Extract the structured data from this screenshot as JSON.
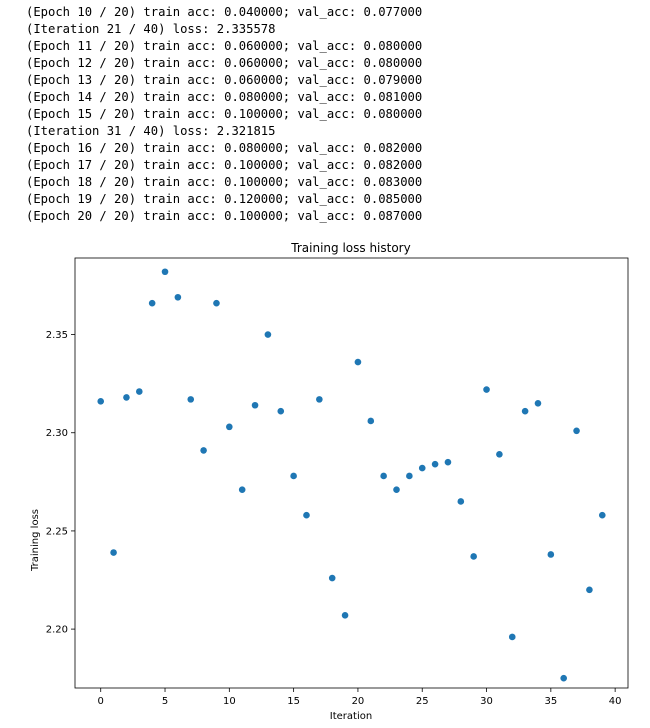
{
  "log_lines": [
    "(Epoch 10 / 20) train acc: 0.040000; val_acc: 0.077000",
    "(Iteration 21 / 40) loss: 2.335578",
    "(Epoch 11 / 20) train acc: 0.060000; val_acc: 0.080000",
    "(Epoch 12 / 20) train acc: 0.060000; val_acc: 0.080000",
    "(Epoch 13 / 20) train acc: 0.060000; val_acc: 0.079000",
    "(Epoch 14 / 20) train acc: 0.080000; val_acc: 0.081000",
    "(Epoch 15 / 20) train acc: 0.100000; val_acc: 0.080000",
    "(Iteration 31 / 40) loss: 2.321815",
    "(Epoch 16 / 20) train acc: 0.080000; val_acc: 0.082000",
    "(Epoch 17 / 20) train acc: 0.100000; val_acc: 0.082000",
    "(Epoch 18 / 20) train acc: 0.100000; val_acc: 0.083000",
    "(Epoch 19 / 20) train acc: 0.120000; val_acc: 0.085000",
    "(Epoch 20 / 20) train acc: 0.100000; val_acc: 0.087000"
  ],
  "chart_data": {
    "type": "scatter",
    "title": "Training loss history",
    "xlabel": "Iteration",
    "ylabel": "Training loss",
    "xlim": [
      -2,
      41
    ],
    "ylim": [
      2.17,
      2.389
    ],
    "xticks": [
      0,
      5,
      10,
      15,
      20,
      25,
      30,
      35,
      40
    ],
    "yticks": [
      2.2,
      2.25,
      2.3,
      2.35
    ],
    "ytick_labels": [
      "2.20",
      "2.25",
      "2.30",
      "2.35"
    ],
    "grid": false,
    "marker_color": "#1f77b4",
    "x": [
      0,
      1,
      2,
      3,
      4,
      5,
      6,
      7,
      8,
      9,
      10,
      11,
      12,
      13,
      14,
      15,
      16,
      17,
      18,
      19,
      20,
      21,
      22,
      23,
      24,
      25,
      26,
      27,
      28,
      29,
      30,
      31,
      32,
      33,
      34,
      35,
      36,
      37,
      38,
      39
    ],
    "y": [
      2.316,
      2.239,
      2.318,
      2.321,
      2.366,
      2.382,
      2.369,
      2.317,
      2.291,
      2.366,
      2.303,
      2.271,
      2.314,
      2.35,
      2.311,
      2.278,
      2.258,
      2.317,
      2.226,
      2.207,
      2.336,
      2.306,
      2.278,
      2.271,
      2.278,
      2.282,
      2.284,
      2.285,
      2.265,
      2.237,
      2.322,
      2.289,
      2.196,
      2.311,
      2.315,
      2.238,
      2.175,
      2.301,
      2.22,
      2.258
    ]
  }
}
